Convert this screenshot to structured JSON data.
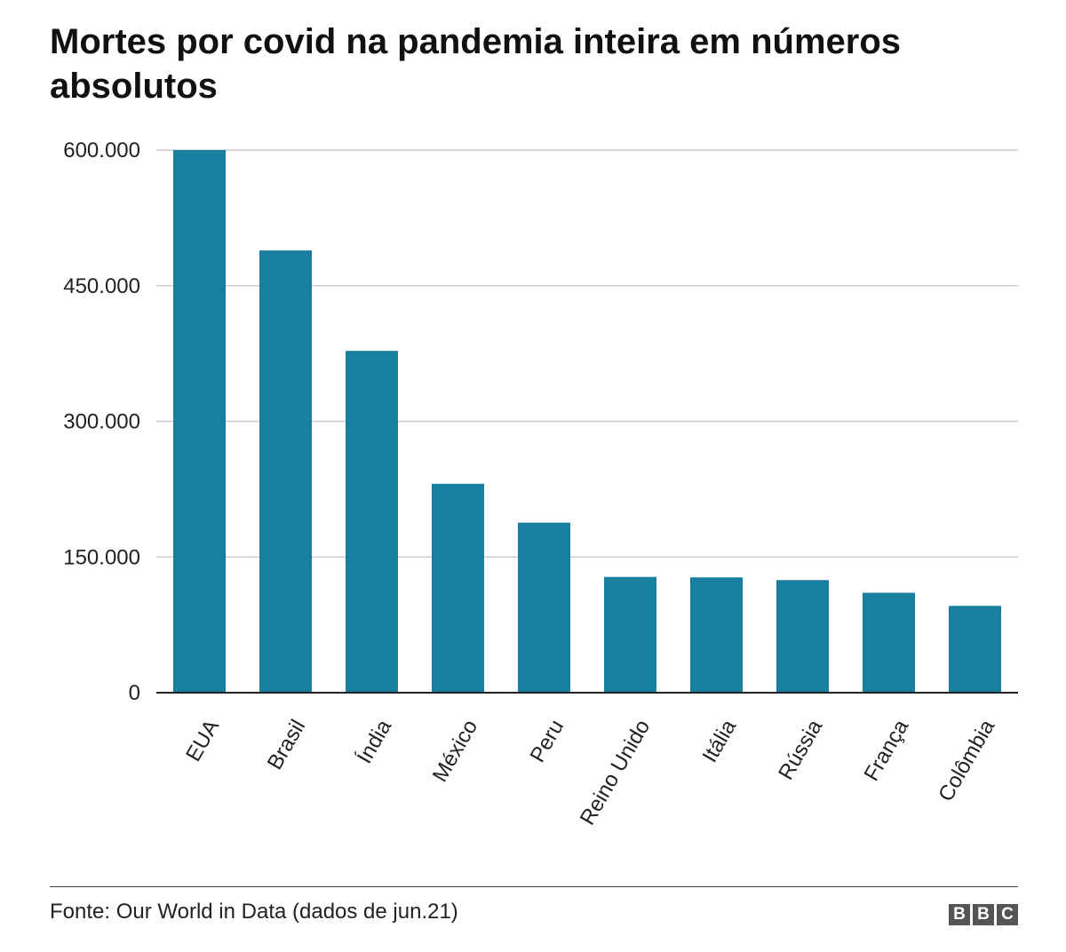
{
  "chart_data": {
    "type": "bar",
    "title": "Mortes por covid na pandemia inteira em números absolutos",
    "categories": [
      "EUA",
      "Brasil",
      "Índia",
      "México",
      "Peru",
      "Reino Unido",
      "Itália",
      "Rússia",
      "França",
      "Colômbia"
    ],
    "values": [
      600000,
      489000,
      378000,
      231000,
      188000,
      128000,
      127500,
      124500,
      110500,
      96000
    ],
    "y_ticks": [
      0,
      150000,
      300000,
      450000,
      600000
    ],
    "y_tick_labels": [
      "0",
      "150.000",
      "300.000",
      "450.000",
      "600.000"
    ],
    "ylim": [
      0,
      600000
    ],
    "xlabel": "",
    "ylabel": "",
    "grid": true,
    "bar_color": "#187FA1"
  },
  "footer": {
    "source": "Fonte: Our World in Data (dados de jun.21)",
    "logo_letters": [
      "B",
      "B",
      "C"
    ]
  }
}
